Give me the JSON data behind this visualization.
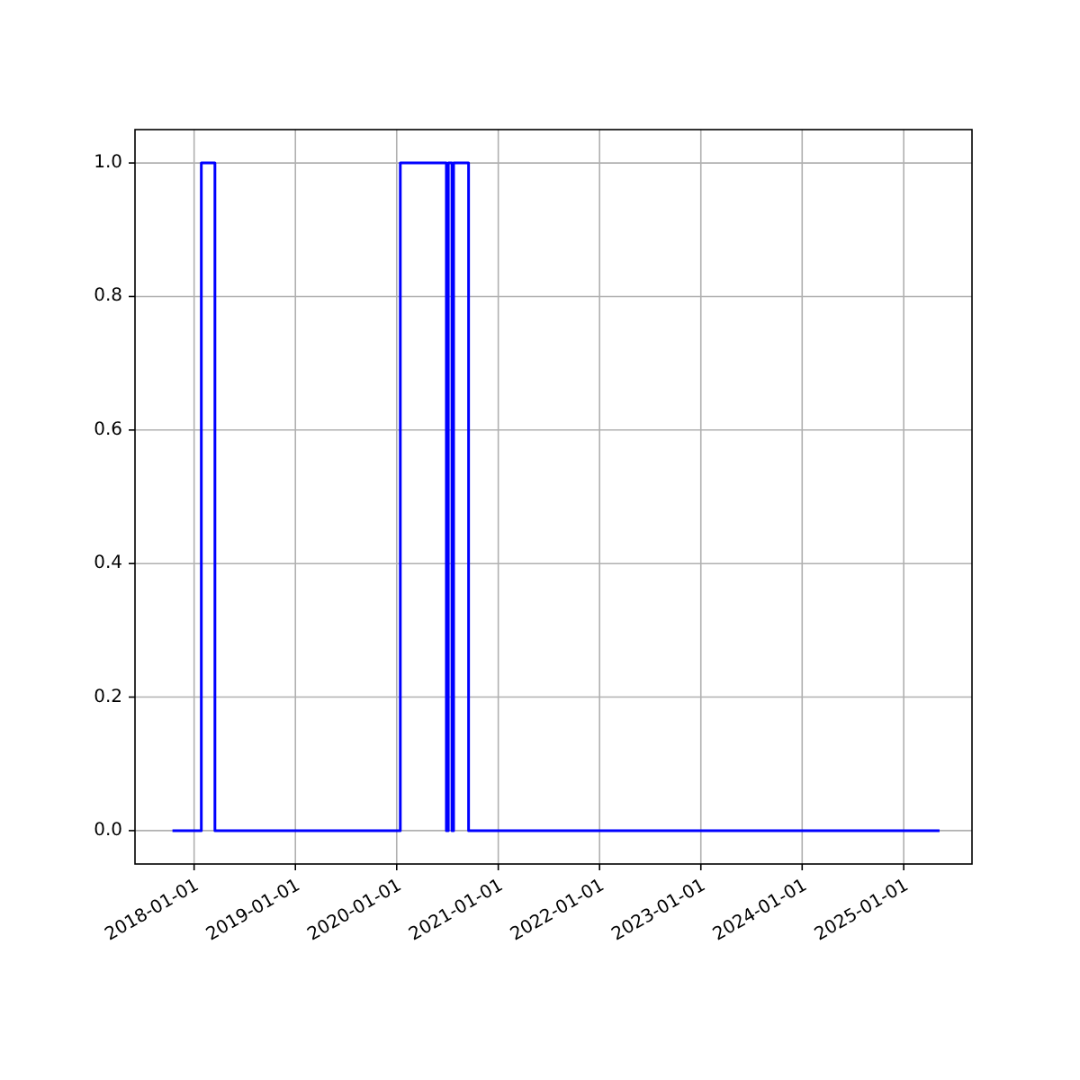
{
  "chart_data": {
    "type": "step",
    "x": [
      "2017-10-15",
      "2018-01-27",
      "2018-03-17",
      "2020-01-14",
      "2020-06-28",
      "2020-07-05",
      "2020-07-18",
      "2020-07-24",
      "2020-09-16",
      "2025-05-10"
    ],
    "series": [
      {
        "color": "#0000ff",
        "values": [
          0,
          1,
          0,
          1,
          0,
          1,
          0,
          1,
          0,
          0
        ]
      }
    ],
    "xlim": [
      "2017-06-02",
      "2025-09-04"
    ],
    "xticks": [
      {
        "value": "2018-01-01",
        "label": "2018-01-01"
      },
      {
        "value": "2019-01-01",
        "label": "2019-01-01"
      },
      {
        "value": "2020-01-01",
        "label": "2020-01-01"
      },
      {
        "value": "2021-01-01",
        "label": "2021-01-01"
      },
      {
        "value": "2022-01-01",
        "label": "2022-01-01"
      },
      {
        "value": "2023-01-01",
        "label": "2023-01-01"
      },
      {
        "value": "2024-01-01",
        "label": "2024-01-01"
      },
      {
        "value": "2025-01-01",
        "label": "2025-01-01"
      }
    ],
    "ylim": [
      -0.05,
      1.05
    ],
    "yticks": [
      {
        "value": 0,
        "label": "0.0"
      },
      {
        "value": 0.2,
        "label": "0.2"
      },
      {
        "value": 0.4,
        "label": "0.4"
      },
      {
        "value": 0.6,
        "label": "0.6"
      },
      {
        "value": 0.8,
        "label": "0.8"
      },
      {
        "value": 1,
        "label": "1.0"
      }
    ],
    "grid": true
  }
}
